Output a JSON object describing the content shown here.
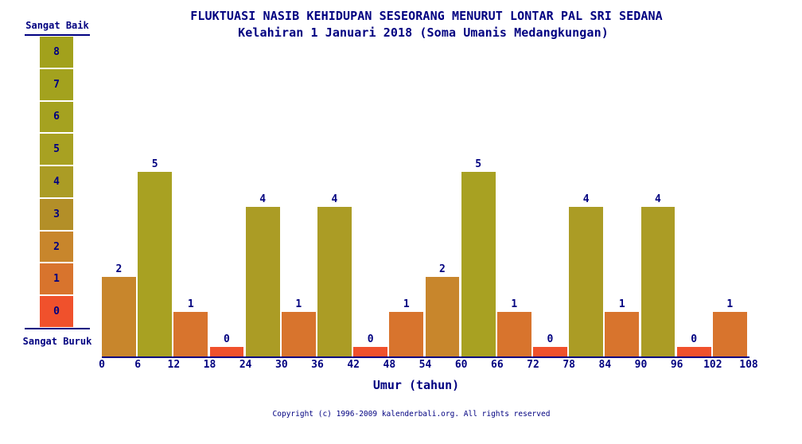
{
  "chart_data": {
    "type": "bar",
    "title": "FLUKTUASI NASIB KEHIDUPAN SESEORANG MENURUT LONTAR PAL SRI SEDANA",
    "subtitle": "Kelahiran 1 Januari 2018 (Soma Umanis Medangkungan)",
    "xlabel": "Umur (tahun)",
    "ylabel": "",
    "x_ticks": [
      0,
      6,
      12,
      18,
      24,
      30,
      36,
      42,
      48,
      54,
      60,
      66,
      72,
      78,
      84,
      90,
      96,
      102,
      108
    ],
    "bar_age_ranges": [
      "0-6",
      "6-12",
      "12-18",
      "18-24",
      "24-30",
      "30-36",
      "36-42",
      "42-48",
      "48-54",
      "54-60",
      "60-66",
      "66-72",
      "72-78",
      "78-84",
      "84-90",
      "90-96",
      "96-102",
      "102-108"
    ],
    "values": [
      2,
      5,
      1,
      0,
      4,
      1,
      4,
      0,
      1,
      2,
      5,
      1,
      0,
      4,
      1,
      4,
      0,
      1
    ],
    "ylim": [
      0,
      8
    ],
    "grid": false,
    "legend_position": "left",
    "data_labels_shown": true
  },
  "legend": {
    "top_label": "Sangat Baik",
    "bottom_label": "Sangat Buruk",
    "scale": [
      8,
      7,
      6,
      5,
      4,
      3,
      2,
      1,
      0
    ],
    "colors": {
      "8": "#a2a11c",
      "7": "#a3a21e",
      "6": "#a5a220",
      "5": "#a8a122",
      "4": "#ab9c25",
      "3": "#b38f28",
      "2": "#c8862c",
      "1": "#d8742d",
      "0": "#f0512c"
    }
  },
  "footer": {
    "copyright": "Copyright (c) 1996-2009 kalenderbali.org. All rights reserved"
  },
  "colors": {
    "text": "#000080",
    "background": "#ffffff"
  }
}
